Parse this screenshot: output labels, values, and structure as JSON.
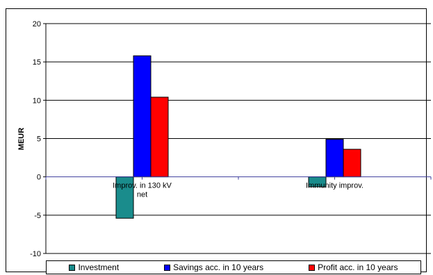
{
  "chart_data": {
    "type": "bar",
    "title": "",
    "xlabel": "",
    "ylabel": "MEUR",
    "ylim": [
      -10,
      20
    ],
    "yticks": [
      -10,
      -5,
      0,
      5,
      10,
      15,
      20
    ],
    "grid": true,
    "legend_position": "bottom",
    "categories": [
      [
        "Improv. in 130 kV",
        "net"
      ],
      [
        "Immunity improv."
      ]
    ],
    "series": [
      {
        "name": "Investment",
        "color": "#1a8c8c",
        "values": [
          -5.4,
          -1.3
        ]
      },
      {
        "name": "Savings acc. in 10 years",
        "color": "#0000ff",
        "values": [
          15.8,
          4.9
        ]
      },
      {
        "name": "Profit acc. in 10 years",
        "color": "#ff0000",
        "values": [
          10.4,
          3.6
        ]
      }
    ]
  }
}
